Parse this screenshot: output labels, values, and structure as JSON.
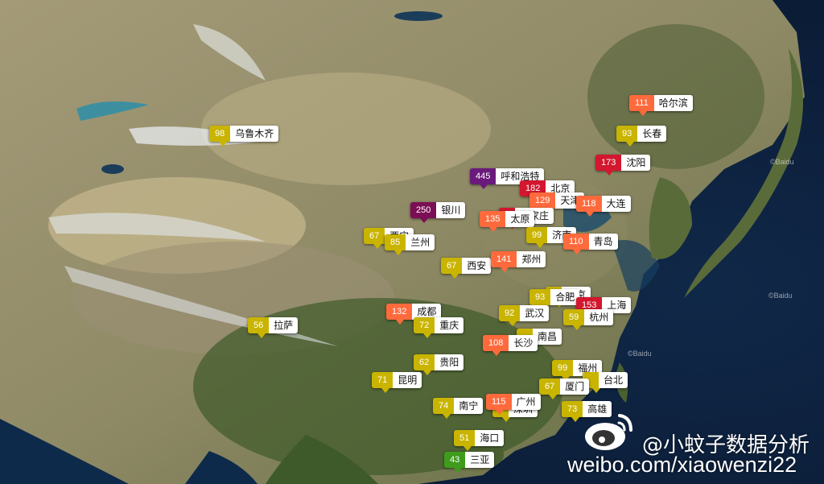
{
  "colors": {
    "good": "#3f9b1c",
    "moderate": "#c9b400",
    "light": "#ff6a3d",
    "medium": "#d2172e",
    "heavy": "#7b0f55",
    "severe": "#6a1a7a"
  },
  "markers": [
    {
      "city": "哈尔滨",
      "aqi": 111,
      "level": "light"
    },
    {
      "city": "长春",
      "aqi": 93,
      "level": "moderate"
    },
    {
      "city": "乌鲁木齐",
      "aqi": 98,
      "level": "moderate"
    },
    {
      "city": "沈阳",
      "aqi": 173,
      "level": "medium"
    },
    {
      "city": "呼和浩特",
      "aqi": 445,
      "level": "severe"
    },
    {
      "city": "北京",
      "aqi": 182,
      "level": "medium"
    },
    {
      "city": "天津",
      "aqi": 129,
      "level": "light"
    },
    {
      "city": "大连",
      "aqi": 118,
      "level": "light"
    },
    {
      "city": "银川",
      "aqi": 250,
      "level": "heavy"
    },
    {
      "city": "石家庄",
      "aqi": null,
      "level": "medium"
    },
    {
      "city": "太原",
      "aqi": 135,
      "level": "light"
    },
    {
      "city": "西宁",
      "aqi": 67,
      "level": "moderate"
    },
    {
      "city": "兰州",
      "aqi": 85,
      "level": "moderate"
    },
    {
      "city": "济南",
      "aqi": 99,
      "level": "moderate"
    },
    {
      "city": "青岛",
      "aqi": 110,
      "level": "light"
    },
    {
      "city": "西安",
      "aqi": 67,
      "level": "moderate"
    },
    {
      "city": "郑州",
      "aqi": 141,
      "level": "light"
    },
    {
      "city": "南京",
      "aqi": null,
      "level": "moderate"
    },
    {
      "city": "合肥",
      "aqi": 93,
      "level": "moderate"
    },
    {
      "city": "成都",
      "aqi": 132,
      "level": "light"
    },
    {
      "city": "上海",
      "aqi": 153,
      "level": "medium"
    },
    {
      "city": "武汉",
      "aqi": 92,
      "level": "moderate"
    },
    {
      "city": "杭州",
      "aqi": 59,
      "level": "moderate"
    },
    {
      "city": "拉萨",
      "aqi": 56,
      "level": "moderate"
    },
    {
      "city": "重庆",
      "aqi": 72,
      "level": "moderate"
    },
    {
      "city": "南昌",
      "aqi": null,
      "level": "moderate"
    },
    {
      "city": "长沙",
      "aqi": 108,
      "level": "light"
    },
    {
      "city": "贵阳",
      "aqi": 62,
      "level": "moderate"
    },
    {
      "city": "福州",
      "aqi": 99,
      "level": "moderate"
    },
    {
      "city": "昆明",
      "aqi": 71,
      "level": "moderate"
    },
    {
      "city": "台北",
      "aqi": null,
      "level": "moderate"
    },
    {
      "city": "厦门",
      "aqi": 67,
      "level": "moderate"
    },
    {
      "city": "南宁",
      "aqi": 74,
      "level": "moderate"
    },
    {
      "city": "深圳",
      "aqi": null,
      "level": "moderate"
    },
    {
      "city": "广州",
      "aqi": 115,
      "level": "light"
    },
    {
      "city": "高雄",
      "aqi": 73,
      "level": "moderate"
    },
    {
      "city": "海口",
      "aqi": 51,
      "level": "moderate"
    },
    {
      "city": "三亚",
      "aqi": 43,
      "level": "good"
    }
  ],
  "watermark": {
    "handle": "@小蚊子数据分析",
    "url": "weibo.com/xiaowenzi22"
  },
  "baidu_labels": [
    "©Baidu",
    "©Baidu",
    "©Baidu"
  ]
}
